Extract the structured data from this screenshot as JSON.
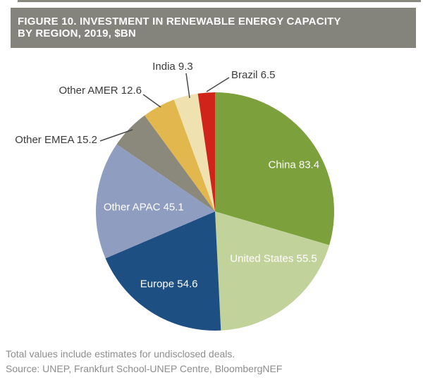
{
  "header": {
    "title_line1": "FIGURE 10. INVESTMENT IN RENEWABLE ENERGY CAPACITY",
    "title_line2": "BY REGION, 2019, $BN",
    "bg_color": "#85847c",
    "text_color": "#ffffff"
  },
  "chart_data": {
    "type": "pie",
    "title": "FIGURE 10. INVESTMENT IN RENEWABLE ENERGY CAPACITY BY REGION, 2019, $BN",
    "start_angle_deg": 0,
    "direction": "clockwise",
    "slices": [
      {
        "label": "China",
        "value": 83.4,
        "color": "#7ca03c",
        "label_position": "inside",
        "label_color": "#ffffff"
      },
      {
        "label": "United States",
        "value": 55.5,
        "color": "#c2d29b",
        "label_position": "inside",
        "label_color": "#ffffff"
      },
      {
        "label": "Europe",
        "value": 54.6,
        "color": "#1e4f82",
        "label_position": "inside",
        "label_color": "#ffffff"
      },
      {
        "label": "Other APAC",
        "value": 45.1,
        "color": "#8f9dc1",
        "label_position": "inside",
        "label_color": "#ffffff"
      },
      {
        "label": "Other EMEA",
        "value": 15.2,
        "color": "#8b897c",
        "label_position": "callout",
        "label_color": "#3b3b3b"
      },
      {
        "label": "Other AMER",
        "value": 12.6,
        "color": "#e2b84e",
        "label_position": "callout",
        "label_color": "#3b3b3b"
      },
      {
        "label": "India",
        "value": 9.3,
        "color": "#f0e2b0",
        "label_position": "callout",
        "label_color": "#3b3b3b"
      },
      {
        "label": "Brazil",
        "value": 6.5,
        "color": "#d0241b",
        "label_position": "callout",
        "label_color": "#3b3b3b"
      }
    ],
    "leader_line_color": "#4a4a4a"
  },
  "footer": {
    "note": "Total values include estimates for undisclosed deals.",
    "source": "Source: UNEP, Frankfurt School-UNEP Centre, BloombergNEF"
  }
}
